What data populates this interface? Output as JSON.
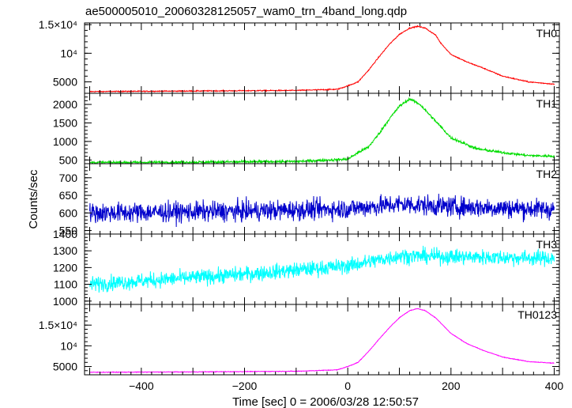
{
  "chart_data": {
    "type": "line",
    "title": "ae500005010_20060328125057_wam0_trn_4band_long.qdp",
    "xlabel": "Time [sec] 0 = 2006/03/28 12:50:57",
    "ylabel": "Counts/sec",
    "xlim": [
      -510,
      410
    ],
    "xticks": [
      -400,
      -200,
      0,
      200,
      400
    ],
    "xtick_labels": [
      "−400",
      "−200",
      "0",
      "200",
      "400"
    ],
    "panels": [
      {
        "name": "TH0",
        "color": "#ff0000",
        "ylim": [
          3000,
          15300
        ],
        "yticks": [
          5000,
          10000,
          15000
        ],
        "ytick_labels": [
          "5000",
          "10⁴",
          "1.5×10⁴"
        ],
        "minor_step": 1000,
        "noise": 90,
        "x": [
          -500,
          -400,
          -300,
          -200,
          -100,
          -20,
          0,
          20,
          40,
          60,
          80,
          100,
          120,
          135,
          150,
          170,
          180,
          200,
          230,
          260,
          300,
          350,
          400
        ],
        "y": [
          3300,
          3350,
          3400,
          3450,
          3500,
          3700,
          4300,
          5000,
          7000,
          9300,
          11500,
          13300,
          14400,
          14700,
          14400,
          13200,
          11800,
          9800,
          8500,
          7500,
          6000,
          5000,
          4600
        ]
      },
      {
        "name": "TH1",
        "color": "#00dd00",
        "ylim": [
          400,
          2300
        ],
        "yticks": [
          500,
          1000,
          1500,
          2000
        ],
        "ytick_labels": [
          "500",
          "1000",
          "1500",
          "2000"
        ],
        "minor_step": 100,
        "noise": 35,
        "x": [
          -500,
          -300,
          -100,
          0,
          20,
          40,
          60,
          80,
          100,
          120,
          140,
          160,
          200,
          250,
          300,
          350,
          400
        ],
        "y": [
          430,
          440,
          460,
          520,
          700,
          850,
          1200,
          1600,
          1950,
          2150,
          2000,
          1700,
          1100,
          800,
          700,
          620,
          600
        ]
      },
      {
        "name": "TH2",
        "color": "#0000cc",
        "ylim": [
          540,
          740
        ],
        "yticks": [
          550,
          600,
          650,
          700
        ],
        "ytick_labels": [
          "550",
          "600",
          "650",
          "700"
        ],
        "minor_step": 10,
        "noise": 28,
        "x": [
          -500,
          -200,
          0,
          100,
          200,
          400
        ],
        "y": [
          600,
          605,
          612,
          625,
          618,
          610
        ]
      },
      {
        "name": "TH3",
        "color": "#00ffff",
        "ylim": [
          980,
          1400
        ],
        "yticks": [
          1000,
          1100,
          1200,
          1300,
          1400
        ],
        "ytick_labels": [
          "1000",
          "1100",
          "1200",
          "1300",
          "1400"
        ],
        "minor_step": 20,
        "noise": 45,
        "x": [
          -500,
          -400,
          -200,
          0,
          100,
          200,
          400
        ],
        "y": [
          1100,
          1120,
          1160,
          1210,
          1270,
          1265,
          1255
        ]
      },
      {
        "name": "TH0123",
        "color": "#ff00ff",
        "ylim": [
          3000,
          20000
        ],
        "yticks": [
          5000,
          10000,
          15000
        ],
        "ytick_labels": [
          "5000",
          "10⁴",
          "1.5×10⁴"
        ],
        "minor_step": 1000,
        "noise": 80,
        "x": [
          -500,
          -300,
          -100,
          -20,
          0,
          20,
          40,
          60,
          80,
          100,
          120,
          135,
          150,
          170,
          200,
          230,
          260,
          300,
          350,
          400
        ],
        "y": [
          3600,
          3700,
          3850,
          4200,
          5000,
          6000,
          8600,
          11500,
          14300,
          16800,
          18500,
          19000,
          18500,
          16800,
          13000,
          10600,
          9000,
          7300,
          6200,
          5800
        ]
      }
    ]
  }
}
